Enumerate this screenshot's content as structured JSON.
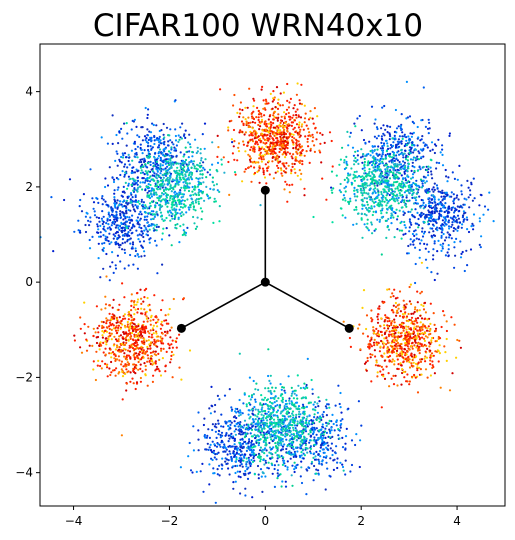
{
  "chart_data": {
    "type": "scatter",
    "title": "CIFAR100 WRN40x10",
    "xlabel": "",
    "ylabel": "",
    "xlim": [
      -4.7,
      5.0
    ],
    "ylim": [
      -4.7,
      5.0
    ],
    "xticks": [
      -4,
      -2,
      0,
      2,
      4
    ],
    "yticks": [
      -4,
      -2,
      0,
      2,
      4
    ],
    "xtick_labels": [
      "−4",
      "−2",
      "0",
      "2",
      "4"
    ],
    "ytick_labels": [
      "−4",
      "−2",
      "0",
      "2",
      "4"
    ],
    "grid": false,
    "colormap": "jet",
    "colors": {
      "low": "#0020d0",
      "mid_low": "#0090ff",
      "mid": "#00d090",
      "mid_high": "#ffd000",
      "high": "#ff2000",
      "vector": "#000000"
    },
    "vectors": [
      {
        "x": [
          0,
          0
        ],
        "y": [
          0,
          1.93
        ]
      },
      {
        "x": [
          0,
          -1.75
        ],
        "y": [
          0,
          -0.97
        ]
      },
      {
        "x": [
          0,
          1.75
        ],
        "y": [
          0,
          -0.97
        ]
      }
    ],
    "vector_points": [
      {
        "x": 0,
        "y": 0
      },
      {
        "x": 0,
        "y": 1.93
      },
      {
        "x": -1.75,
        "y": -0.97
      },
      {
        "x": 1.75,
        "y": -0.97
      }
    ],
    "clusters": [
      {
        "center": [
          0.2,
          3.0
        ],
        "color_level": "high",
        "count": 700
      },
      {
        "center": [
          -2.75,
          -1.2
        ],
        "color_level": "high",
        "count": 650
      },
      {
        "center": [
          2.9,
          -1.2
        ],
        "color_level": "high",
        "count": 650
      },
      {
        "center": [
          -1.9,
          2.0
        ],
        "color_level": "mid",
        "count": 600
      },
      {
        "center": [
          2.4,
          2.0
        ],
        "color_level": "mid",
        "count": 600
      },
      {
        "center": [
          0.3,
          -3.0
        ],
        "color_level": "mid",
        "count": 600
      },
      {
        "center": [
          -3.0,
          1.3
        ],
        "color_level": "low",
        "count": 450
      },
      {
        "center": [
          3.6,
          1.4
        ],
        "color_level": "low",
        "count": 450
      },
      {
        "center": [
          -0.5,
          -3.4
        ],
        "color_level": "low",
        "count": 450
      },
      {
        "center": [
          -2.3,
          2.6
        ],
        "color_level": "low",
        "count": 350
      },
      {
        "center": [
          2.8,
          2.7
        ],
        "color_level": "low",
        "count": 350
      },
      {
        "center": [
          1.0,
          -3.3
        ],
        "color_level": "low",
        "count": 350
      }
    ]
  }
}
